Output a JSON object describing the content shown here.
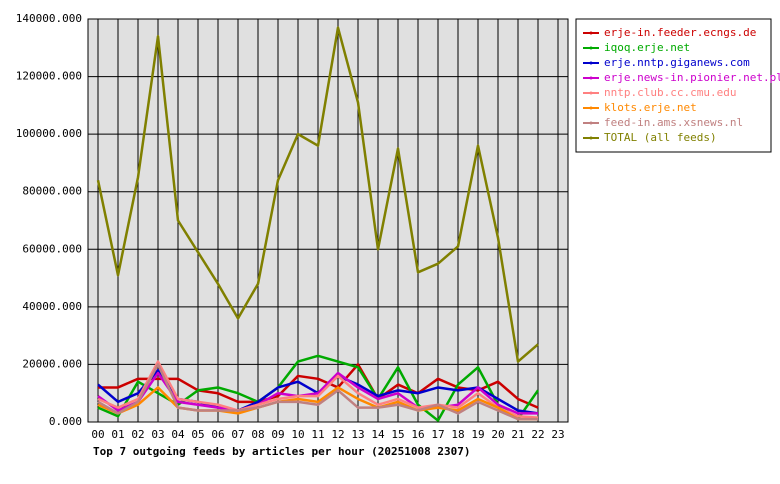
{
  "chart_data": {
    "type": "line",
    "title": "Top 7 outgoing feeds by articles per hour (20251008 2307)",
    "categories": [
      "00",
      "01",
      "02",
      "03",
      "04",
      "05",
      "06",
      "07",
      "08",
      "09",
      "10",
      "11",
      "12",
      "13",
      "14",
      "15",
      "16",
      "17",
      "18",
      "19",
      "20",
      "21",
      "22",
      "23"
    ],
    "ylim": [
      0,
      140000
    ],
    "yticks": [
      {
        "value": 0,
        "label": "0.000"
      },
      {
        "value": 20000,
        "label": "20000.000"
      },
      {
        "value": 40000,
        "label": "40000.000"
      },
      {
        "value": 60000,
        "label": "60000.000"
      },
      {
        "value": 80000,
        "label": "80000.000"
      },
      {
        "value": 100000,
        "label": "100000.000"
      },
      {
        "value": 120000,
        "label": "120000.000"
      },
      {
        "value": 140000,
        "label": "140000.000"
      }
    ],
    "grid": true,
    "legend": "right",
    "series": [
      {
        "name": "erje-in.feeder.ecngs.de",
        "color": "#cc0000",
        "values": [
          12000,
          12000,
          15000,
          15000,
          15000,
          11000,
          10000,
          7000,
          7000,
          9000,
          16000,
          15000,
          12000,
          20000,
          8000,
          13000,
          10000,
          15000,
          12000,
          11000,
          14000,
          8000,
          5000,
          null
        ]
      },
      {
        "name": "iqoq.erje.net",
        "color": "#00aa00",
        "values": [
          5000,
          2000,
          14000,
          10000,
          6000,
          11000,
          12000,
          10000,
          7000,
          12000,
          21000,
          23000,
          21000,
          19000,
          8000,
          19000,
          6000,
          500,
          13000,
          19000,
          6000,
          1000,
          11000,
          null
        ]
      },
      {
        "name": "erje.nntp.giganews.com",
        "color": "#0000cc",
        "values": [
          13000,
          7000,
          10000,
          18000,
          8000,
          7000,
          5000,
          4000,
          7000,
          12000,
          14000,
          10000,
          16000,
          13000,
          9000,
          11000,
          10000,
          12000,
          11000,
          12000,
          8000,
          4000,
          3000,
          null
        ]
      },
      {
        "name": "erje.news-in.pionier.net.pl",
        "color": "#cc00cc",
        "values": [
          9000,
          4000,
          7000,
          17000,
          7000,
          6000,
          5000,
          4000,
          6000,
          10000,
          9000,
          10000,
          17000,
          12000,
          8000,
          10000,
          5000,
          5000,
          6000,
          12000,
          6000,
          3000,
          3000,
          null
        ]
      },
      {
        "name": "nntp.club.cc.cmu.edu",
        "color": "#ff8080",
        "values": [
          8000,
          5000,
          8000,
          21000,
          8000,
          7000,
          6000,
          4000,
          6000,
          8000,
          9000,
          9000,
          16000,
          10000,
          6000,
          8000,
          5000,
          6000,
          5000,
          10000,
          5000,
          2000,
          1500,
          null
        ]
      },
      {
        "name": "klots.erje.net",
        "color": "#ff8800",
        "values": [
          6000,
          3000,
          6000,
          12000,
          5000,
          4000,
          4000,
          3000,
          5000,
          7000,
          8000,
          7000,
          12000,
          8000,
          5000,
          7000,
          4000,
          5000,
          4000,
          8000,
          5000,
          1000,
          1000,
          null
        ]
      },
      {
        "name": "feed-in.ams.xsnews.nl",
        "color": "#c08080",
        "values": [
          7000,
          3000,
          7000,
          20000,
          5000,
          4000,
          4000,
          4000,
          5000,
          7000,
          7000,
          6000,
          11000,
          5000,
          5000,
          6000,
          4000,
          6000,
          3000,
          7000,
          4000,
          1000,
          1000,
          null
        ]
      },
      {
        "name": "TOTAL (all feeds)",
        "color": "#808000",
        "values": [
          84000,
          51000,
          85000,
          134000,
          70000,
          59000,
          48000,
          36000,
          48000,
          84000,
          100000,
          96000,
          137000,
          111000,
          60000,
          95000,
          52000,
          55000,
          61000,
          96000,
          64000,
          21000,
          27000,
          null
        ]
      }
    ]
  }
}
